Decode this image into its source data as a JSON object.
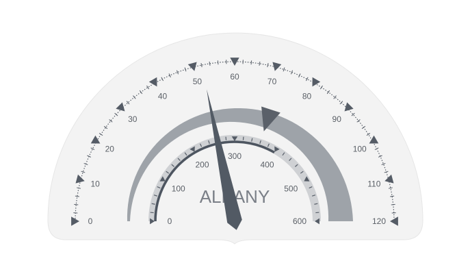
{
  "gauge": {
    "label": "ALBANY",
    "outer_scale": {
      "min": 0,
      "max": 120,
      "major_step": 10,
      "minor_step": 2,
      "labels": [
        "0",
        "10",
        "20",
        "30",
        "40",
        "50",
        "60",
        "70",
        "80",
        "90",
        "100",
        "110",
        "120"
      ]
    },
    "inner_scale": {
      "min": 0,
      "max": 600,
      "major_step": 100,
      "minor_step": 20,
      "labels": [
        "0",
        "100",
        "200",
        "300",
        "400",
        "500",
        "600"
      ]
    },
    "needle_value": 52,
    "range_band": {
      "start": 0,
      "end": 120
    },
    "marker_value": 72,
    "inner_bar_value": 400,
    "colors": {
      "panel": "#f3f3f3",
      "panel_border": "#e6e6e6",
      "ticks": "#555c66",
      "needle": "#525a64",
      "band": "#9ea3a9",
      "inner_track": "#cfd1d4",
      "inner_bar": "#4d5560",
      "marker": "#5a6069",
      "label": "#7a7f87"
    }
  }
}
